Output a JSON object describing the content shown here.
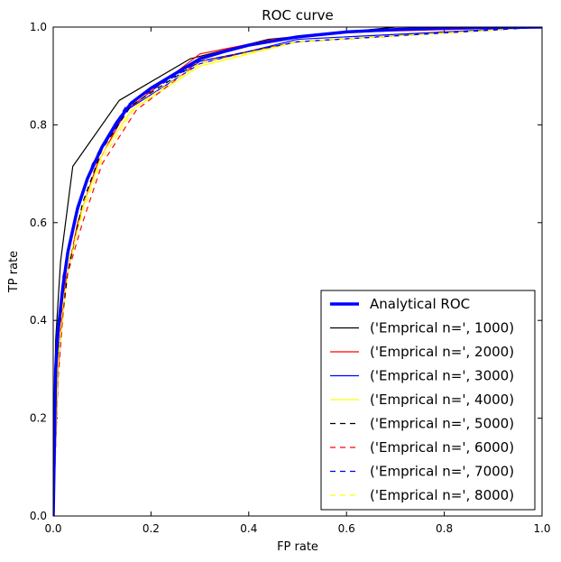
{
  "chart_data": {
    "type": "line",
    "title": "ROC curve",
    "xlabel": "FP rate",
    "ylabel": "TP rate",
    "xlim": [
      0,
      1
    ],
    "ylim": [
      0,
      1
    ],
    "xticks": [
      "0.0",
      "0.2",
      "0.4",
      "0.6",
      "0.8",
      "1.0"
    ],
    "yticks": [
      "0.0",
      "0.2",
      "0.4",
      "0.6",
      "0.8",
      "1.0"
    ],
    "grid": false,
    "legend_position": "lower-right",
    "series": [
      {
        "name": "Analytical ROC",
        "color": "#0000ff",
        "style": "solid",
        "width": "thick",
        "x": [
          0,
          0.005,
          0.01,
          0.02,
          0.03,
          0.05,
          0.07,
          0.1,
          0.13,
          0.16,
          0.2,
          0.25,
          0.3,
          0.35,
          0.4,
          0.5,
          0.6,
          0.7,
          0.8,
          0.9,
          1.0
        ],
        "y": [
          0,
          0.3,
          0.38,
          0.47,
          0.54,
          0.63,
          0.69,
          0.755,
          0.805,
          0.845,
          0.875,
          0.905,
          0.935,
          0.95,
          0.963,
          0.98,
          0.99,
          0.995,
          0.998,
          0.999,
          1.0
        ]
      },
      {
        "name": "('Emprical n=', 1000)",
        "color": "#000000",
        "style": "solid",
        "x": [
          0,
          0.005,
          0.015,
          0.04,
          0.135,
          0.28,
          0.44,
          0.6,
          0.7,
          1.0
        ],
        "y": [
          0,
          0.36,
          0.52,
          0.715,
          0.85,
          0.935,
          0.975,
          0.99,
          1.0,
          1.0
        ]
      },
      {
        "name": "('Emprical n=', 2000)",
        "color": "#ff0000",
        "style": "solid",
        "x": [
          0,
          0.01,
          0.02,
          0.05,
          0.09,
          0.15,
          0.3,
          0.45,
          0.62,
          1.0
        ],
        "y": [
          0,
          0.3,
          0.45,
          0.6,
          0.72,
          0.83,
          0.945,
          0.975,
          0.99,
          1.0
        ]
      },
      {
        "name": "('Emprical n=', 3000)",
        "color": "#0000ff",
        "style": "solid",
        "x": [
          0,
          0.008,
          0.02,
          0.04,
          0.08,
          0.15,
          0.3,
          0.5,
          1.0
        ],
        "y": [
          0,
          0.33,
          0.47,
          0.59,
          0.72,
          0.83,
          0.925,
          0.975,
          1.0
        ]
      },
      {
        "name": "('Emprical n=', 4000)",
        "color": "#ffff00",
        "style": "solid",
        "x": [
          0,
          0.01,
          0.03,
          0.06,
          0.1,
          0.16,
          0.3,
          0.5,
          1.0
        ],
        "y": [
          0,
          0.32,
          0.5,
          0.63,
          0.74,
          0.83,
          0.92,
          0.97,
          1.0
        ]
      },
      {
        "name": "('Emprical n=', 5000)",
        "color": "#000000",
        "style": "dashed",
        "x": [
          0,
          0.01,
          0.03,
          0.06,
          0.1,
          0.16,
          0.3,
          0.5,
          1.0
        ],
        "y": [
          0,
          0.33,
          0.5,
          0.64,
          0.75,
          0.84,
          0.93,
          0.97,
          1.0
        ]
      },
      {
        "name": "('Emprical n=', 6000)",
        "color": "#ff0000",
        "style": "dashed",
        "x": [
          0,
          0.01,
          0.025,
          0.06,
          0.1,
          0.17,
          0.3,
          0.5,
          1.0
        ],
        "y": [
          0,
          0.28,
          0.48,
          0.6,
          0.72,
          0.83,
          0.93,
          0.97,
          1.0
        ]
      },
      {
        "name": "('Emprical n=', 7000)",
        "color": "#0000ff",
        "style": "dashed",
        "x": [
          0,
          0.008,
          0.02,
          0.05,
          0.09,
          0.15,
          0.3,
          0.5,
          1.0
        ],
        "y": [
          0,
          0.33,
          0.49,
          0.63,
          0.74,
          0.84,
          0.93,
          0.97,
          1.0
        ]
      },
      {
        "name": "('Emprical n=', 8000)",
        "color": "#ffff00",
        "style": "dashed",
        "x": [
          0,
          0.01,
          0.025,
          0.06,
          0.1,
          0.17,
          0.3,
          0.5,
          1.0
        ],
        "y": [
          0,
          0.31,
          0.5,
          0.62,
          0.73,
          0.84,
          0.925,
          0.97,
          1.0
        ]
      }
    ]
  }
}
